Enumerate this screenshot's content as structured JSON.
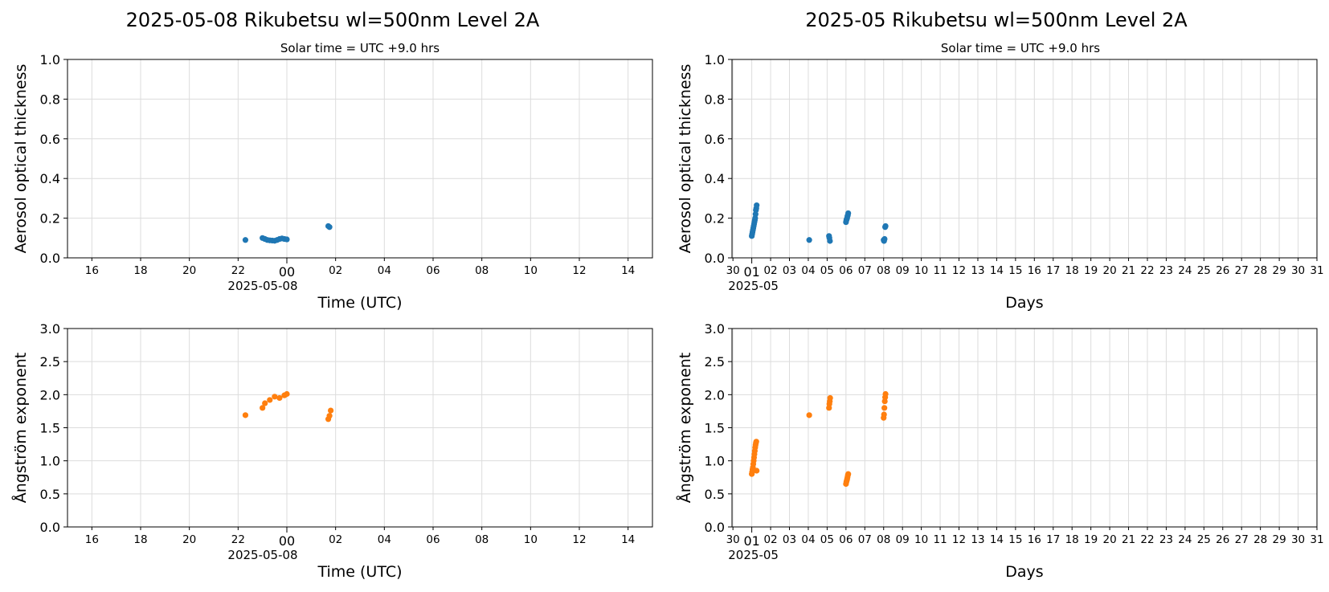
{
  "figure": {
    "left_title": "2025-05-08  Rikubetsu  wl=500nm  Level 2A",
    "right_title": "2025-05  Rikubetsu  wl=500nm  Level 2A",
    "subtitle": "Solar time = UTC +9.0 hrs"
  },
  "chart_data": [
    {
      "id": "daily-aot",
      "type": "scatter",
      "xlabel": "Time (UTC)",
      "ylabel": "Aerosol optical thickness",
      "x_offset_label": "2025-05-08",
      "xlim_hours": [
        -9.0,
        15.0
      ],
      "ylim": [
        0,
        1.0
      ],
      "yticks": [
        0.0,
        0.2,
        0.4,
        0.6,
        0.8,
        1.0
      ],
      "ytick_labels": [
        "0.0",
        "0.2",
        "0.4",
        "0.6",
        "0.8",
        "1.0"
      ],
      "xticks_hours": [
        -8,
        -6,
        -4,
        -2,
        0,
        2,
        4,
        6,
        8,
        10,
        12,
        14
      ],
      "xtick_labels": [
        "16",
        "18",
        "20",
        "22",
        "00",
        "02",
        "04",
        "06",
        "08",
        "10",
        "12",
        "14"
      ],
      "major_xtick_label": "00",
      "grid": true,
      "color": "#1f77b4",
      "series": [
        {
          "x_hours": [
            -1.7,
            -1.0,
            -0.9,
            -0.8,
            -0.7,
            -0.6,
            -0.5,
            -0.4,
            -0.3,
            -0.2,
            -0.1,
            0.0,
            1.7,
            1.75
          ],
          "y": [
            0.09,
            0.1,
            0.095,
            0.09,
            0.088,
            0.087,
            0.086,
            0.09,
            0.095,
            0.098,
            0.095,
            0.093,
            0.16,
            0.155
          ]
        }
      ]
    },
    {
      "id": "monthly-aot",
      "type": "scatter",
      "xlabel": "Days",
      "ylabel": "Aerosol optical thickness",
      "x_offset_label": "2025-05",
      "xlim_days": [
        -0.05,
        31.0
      ],
      "ylim": [
        0,
        1.0
      ],
      "yticks": [
        0.0,
        0.2,
        0.4,
        0.6,
        0.8,
        1.0
      ],
      "ytick_labels": [
        "0.0",
        "0.2",
        "0.4",
        "0.6",
        "0.8",
        "1.0"
      ],
      "xticks_days": [
        0,
        1,
        2,
        3,
        4,
        5,
        6,
        7,
        8,
        9,
        10,
        11,
        12,
        13,
        14,
        15,
        16,
        17,
        18,
        19,
        20,
        21,
        22,
        23,
        24,
        25,
        26,
        27,
        28,
        29,
        30,
        31
      ],
      "xtick_labels": [
        "30",
        "01",
        "02",
        "03",
        "04",
        "05",
        "06",
        "07",
        "08",
        "09",
        "10",
        "11",
        "12",
        "13",
        "14",
        "15",
        "16",
        "17",
        "18",
        "19",
        "20",
        "21",
        "22",
        "23",
        "24",
        "25",
        "26",
        "27",
        "28",
        "29",
        "30",
        "31"
      ],
      "major_xtick_label": "01",
      "grid": true,
      "color": "#1f77b4",
      "series": [
        {
          "x_days": [
            1.0,
            1.02,
            1.04,
            1.06,
            1.08,
            1.1,
            1.12,
            1.14,
            1.16,
            1.18,
            1.2,
            1.22,
            1.24,
            1.26,
            4.05,
            5.1,
            5.12,
            5.15,
            6.0,
            6.02,
            6.04,
            6.06,
            6.08,
            6.1,
            6.12,
            8.0,
            8.02,
            8.05,
            8.08,
            8.1
          ],
          "y": [
            0.11,
            0.12,
            0.13,
            0.14,
            0.15,
            0.16,
            0.17,
            0.18,
            0.19,
            0.2,
            0.22,
            0.24,
            0.25,
            0.265,
            0.09,
            0.11,
            0.1,
            0.085,
            0.18,
            0.19,
            0.195,
            0.2,
            0.21,
            0.215,
            0.225,
            0.09,
            0.085,
            0.095,
            0.155,
            0.16
          ]
        }
      ]
    },
    {
      "id": "daily-angstrom",
      "type": "scatter",
      "xlabel": "Time (UTC)",
      "ylabel": "Ångström exponent",
      "x_offset_label": "2025-05-08",
      "xlim_hours": [
        -9.0,
        15.0
      ],
      "ylim": [
        0,
        3.0
      ],
      "yticks": [
        0.0,
        0.5,
        1.0,
        1.5,
        2.0,
        2.5,
        3.0
      ],
      "ytick_labels": [
        "0.0",
        "0.5",
        "1.0",
        "1.5",
        "2.0",
        "2.5",
        "3.0"
      ],
      "xticks_hours": [
        -8,
        -6,
        -4,
        -2,
        0,
        2,
        4,
        6,
        8,
        10,
        12,
        14
      ],
      "xtick_labels": [
        "16",
        "18",
        "20",
        "22",
        "00",
        "02",
        "04",
        "06",
        "08",
        "10",
        "12",
        "14"
      ],
      "major_xtick_label": "00",
      "grid": true,
      "color": "#ff7f0e",
      "series": [
        {
          "x_hours": [
            -1.7,
            -1.0,
            -0.9,
            -0.7,
            -0.5,
            -0.3,
            -0.1,
            0.0,
            1.7,
            1.75,
            1.8
          ],
          "y": [
            1.69,
            1.8,
            1.87,
            1.92,
            1.97,
            1.95,
            1.99,
            2.01,
            1.63,
            1.68,
            1.76
          ]
        }
      ]
    },
    {
      "id": "monthly-angstrom",
      "type": "scatter",
      "xlabel": "Days",
      "ylabel": "Ångström exponent",
      "x_offset_label": "2025-05",
      "xlim_days": [
        -0.05,
        31.0
      ],
      "ylim": [
        0,
        3.0
      ],
      "yticks": [
        0.0,
        0.5,
        1.0,
        1.5,
        2.0,
        2.5,
        3.0
      ],
      "ytick_labels": [
        "0.0",
        "0.5",
        "1.0",
        "1.5",
        "2.0",
        "2.5",
        "3.0"
      ],
      "xticks_days": [
        0,
        1,
        2,
        3,
        4,
        5,
        6,
        7,
        8,
        9,
        10,
        11,
        12,
        13,
        14,
        15,
        16,
        17,
        18,
        19,
        20,
        21,
        22,
        23,
        24,
        25,
        26,
        27,
        28,
        29,
        30,
        31
      ],
      "xtick_labels": [
        "30",
        "01",
        "02",
        "03",
        "04",
        "05",
        "06",
        "07",
        "08",
        "09",
        "10",
        "11",
        "12",
        "13",
        "14",
        "15",
        "16",
        "17",
        "18",
        "19",
        "20",
        "21",
        "22",
        "23",
        "24",
        "25",
        "26",
        "27",
        "28",
        "29",
        "30",
        "31"
      ],
      "major_xtick_label": "01",
      "grid": true,
      "color": "#ff7f0e",
      "series": [
        {
          "x_days": [
            1.0,
            1.02,
            1.04,
            1.06,
            1.08,
            1.1,
            1.12,
            1.14,
            1.16,
            1.18,
            1.2,
            1.22,
            1.24,
            1.26,
            4.05,
            5.1,
            5.12,
            5.14,
            5.16,
            6.0,
            6.02,
            6.04,
            6.06,
            6.08,
            6.1,
            6.12,
            8.0,
            8.02,
            8.04,
            8.06,
            8.08,
            8.1
          ],
          "y": [
            0.8,
            0.83,
            0.87,
            0.9,
            0.95,
            1.0,
            1.05,
            1.1,
            1.15,
            1.2,
            1.24,
            1.27,
            1.29,
            0.85,
            1.69,
            1.8,
            1.86,
            1.9,
            1.95,
            0.65,
            0.68,
            0.7,
            0.72,
            0.75,
            0.78,
            0.8,
            1.65,
            1.7,
            1.8,
            1.9,
            1.96,
            2.01
          ]
        }
      ]
    }
  ]
}
